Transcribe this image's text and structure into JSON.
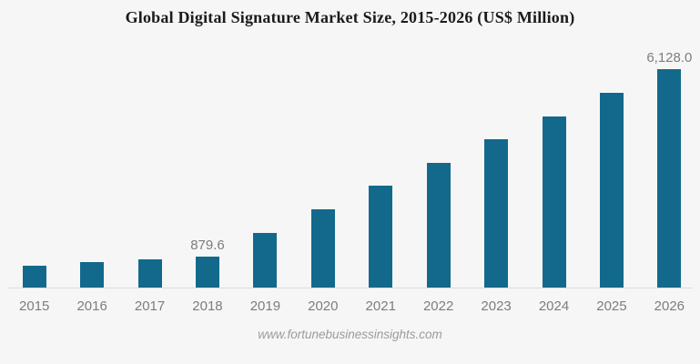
{
  "title": "Global Digital Signature Market Size, 2015-2026 (US$ Million)",
  "footer_text": "www.fortunebusinessinsights.com",
  "colors": {
    "bar": "#13698c",
    "background": "#f6f6f6",
    "title": "#1b1b1b",
    "axis_labels": "#7d7d7d",
    "data_labels": "#7d7d7d",
    "axis_line": "#dcdcdc",
    "footer": "#9b9b9b"
  },
  "chart_data": {
    "type": "bar",
    "title": "Global Digital Signature Market Size, 2015-2026 (US$ Million)",
    "categories": [
      "2015",
      "2016",
      "2017",
      "2018",
      "2019",
      "2020",
      "2021",
      "2022",
      "2023",
      "2024",
      "2025",
      "2026"
    ],
    "values": [
      625,
      715,
      800,
      879.6,
      1530,
      2200,
      2850,
      3500,
      4160,
      4810,
      5470,
      6128
    ],
    "data_labels": [
      "",
      "",
      "",
      "879.6",
      "",
      "",
      "",
      "",
      "",
      "",
      "",
      "6,128.0"
    ],
    "xlabel": "",
    "ylabel": "",
    "ylim": [
      0,
      6128
    ],
    "grid": false,
    "legend": false,
    "y_axis_visible": false,
    "source": "www.fortunebusinessinsights.com"
  }
}
